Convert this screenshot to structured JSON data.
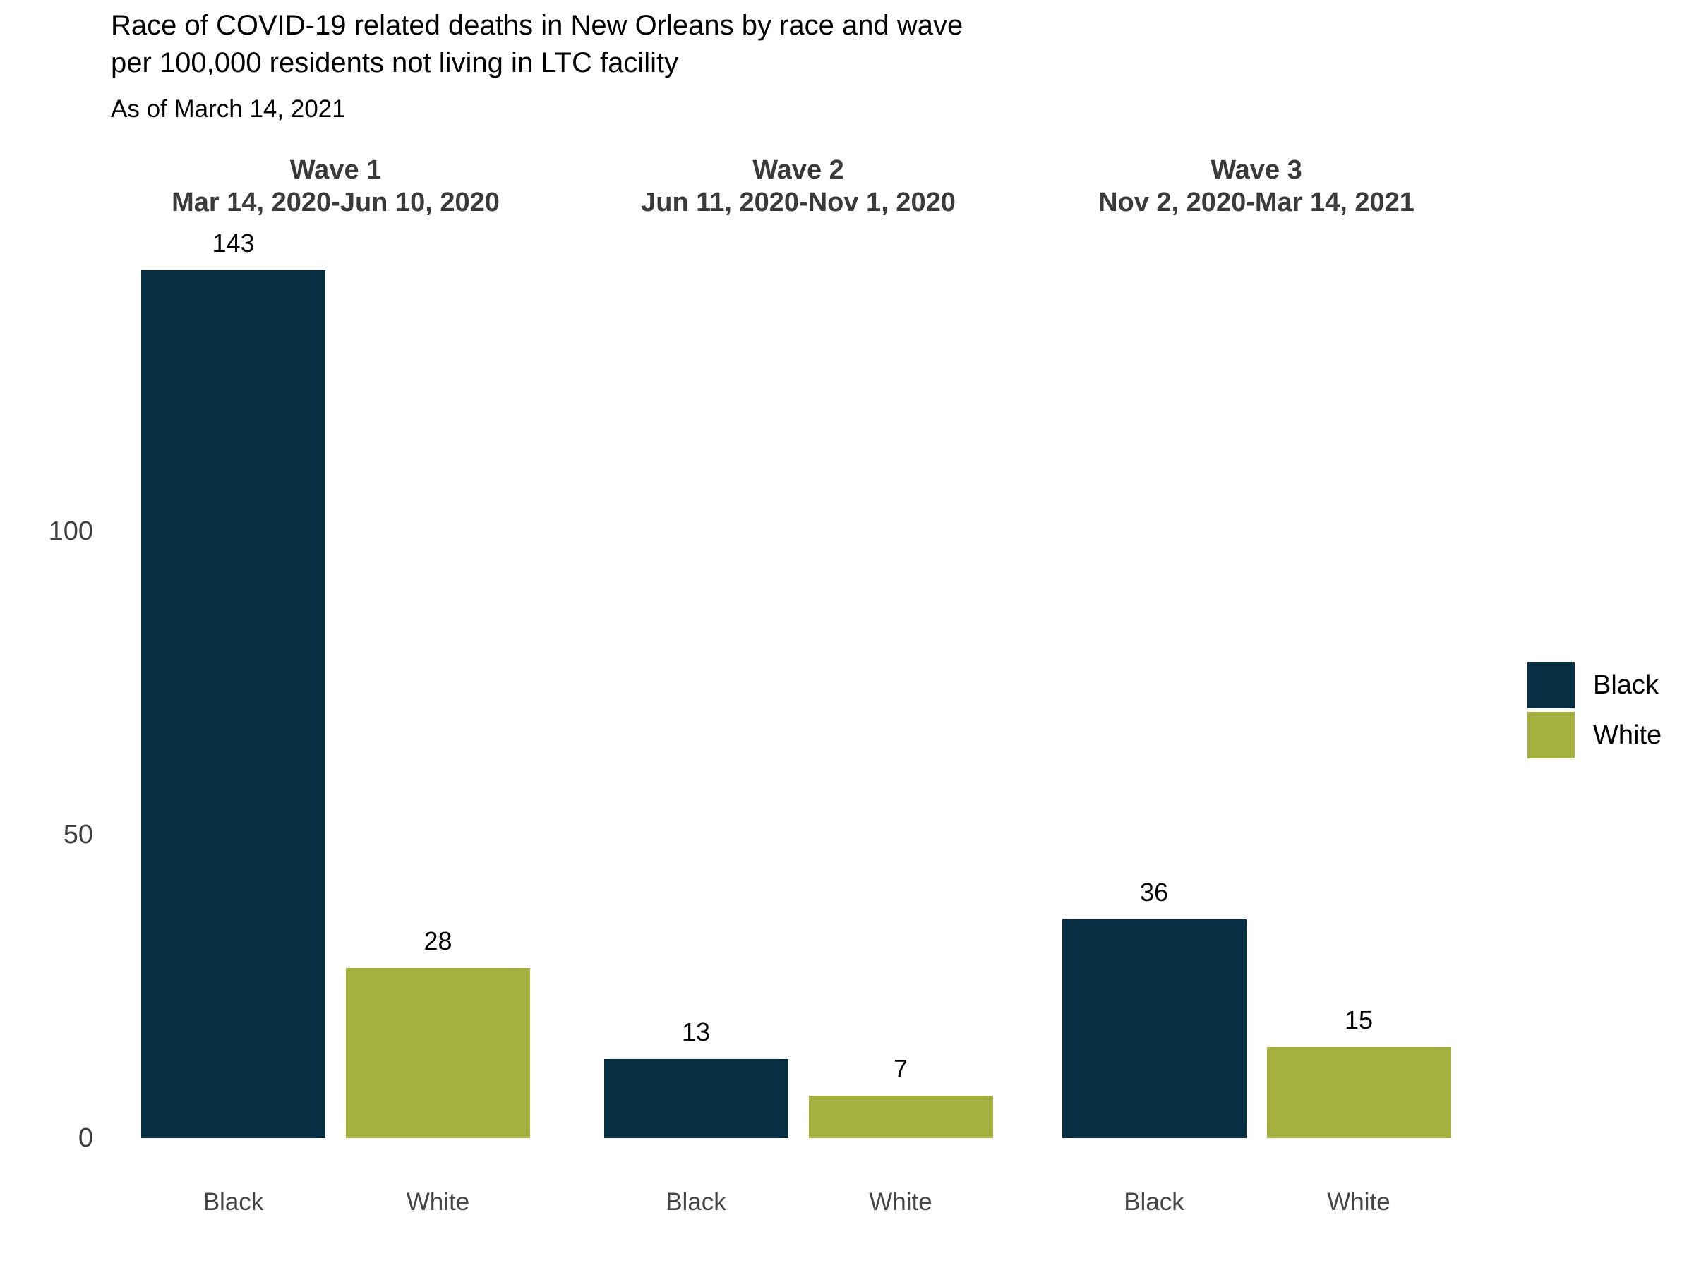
{
  "title": {
    "line1": "Race of COVID-19 related deaths in New Orleans by race and wave",
    "line2": "per 100,000 residents not living in LTC facility",
    "subtitle": "As of March 14, 2021"
  },
  "chart_data": {
    "type": "bar",
    "title": "Race of COVID-19 related deaths in New Orleans by race and wave per 100,000 residents not living in LTC facility",
    "subtitle": "As of March 14, 2021",
    "xlabel": "",
    "ylabel": "",
    "yticks": [
      0,
      50,
      100
    ],
    "ylim": [
      0,
      148
    ],
    "grid": false,
    "facets": [
      {
        "label": "Wave 1",
        "date_range": "Mar 14, 2020-Jun 10, 2020",
        "categories": [
          "Black",
          "White"
        ],
        "values": [
          143,
          28
        ]
      },
      {
        "label": "Wave 2",
        "date_range": "Jun 11, 2020-Nov 1, 2020",
        "categories": [
          "Black",
          "White"
        ],
        "values": [
          13,
          7
        ]
      },
      {
        "label": "Wave 3",
        "date_range": "Nov 2, 2020-Mar 14, 2021",
        "categories": [
          "Black",
          "White"
        ],
        "values": [
          36,
          15
        ]
      }
    ],
    "legend": {
      "position": "right",
      "entries": [
        {
          "label": "Black",
          "color": "#072f44"
        },
        {
          "label": "White",
          "color": "#a4b13e"
        }
      ]
    }
  }
}
